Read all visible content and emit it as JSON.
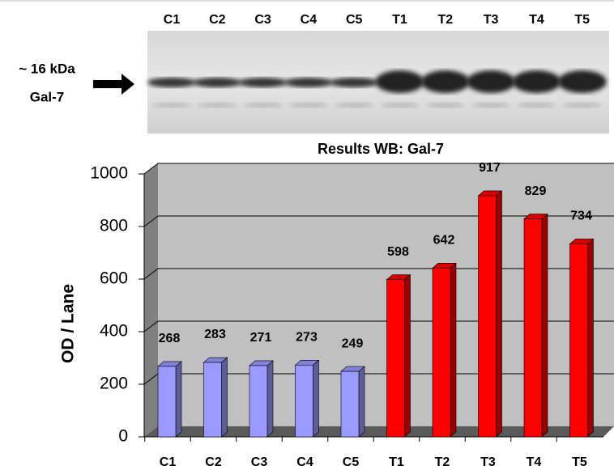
{
  "blot": {
    "lanes": [
      "C1",
      "C2",
      "C3",
      "C4",
      "C5",
      "T1",
      "T2",
      "T3",
      "T4",
      "T5"
    ],
    "marker": "~ 16 kDa",
    "protein": "Gal-7"
  },
  "chart_data": {
    "type": "bar3d",
    "title": "Results WB: Gal-7",
    "y_label": "OD / Lane",
    "categories": [
      "C1",
      "C2",
      "C3",
      "C4",
      "C5",
      "T1",
      "T2",
      "T3",
      "T4",
      "T5"
    ],
    "values": [
      268,
      283,
      271,
      273,
      249,
      598,
      642,
      917,
      829,
      734
    ],
    "colors": [
      "#9999ff",
      "#9999ff",
      "#9999ff",
      "#9999ff",
      "#9999ff",
      "#ff0000",
      "#ff0000",
      "#ff0000",
      "#ff0000",
      "#ff0000"
    ],
    "ylim": [
      0,
      1000
    ],
    "yticks": [
      0,
      200,
      400,
      600,
      800,
      1000
    ],
    "grid": true
  }
}
